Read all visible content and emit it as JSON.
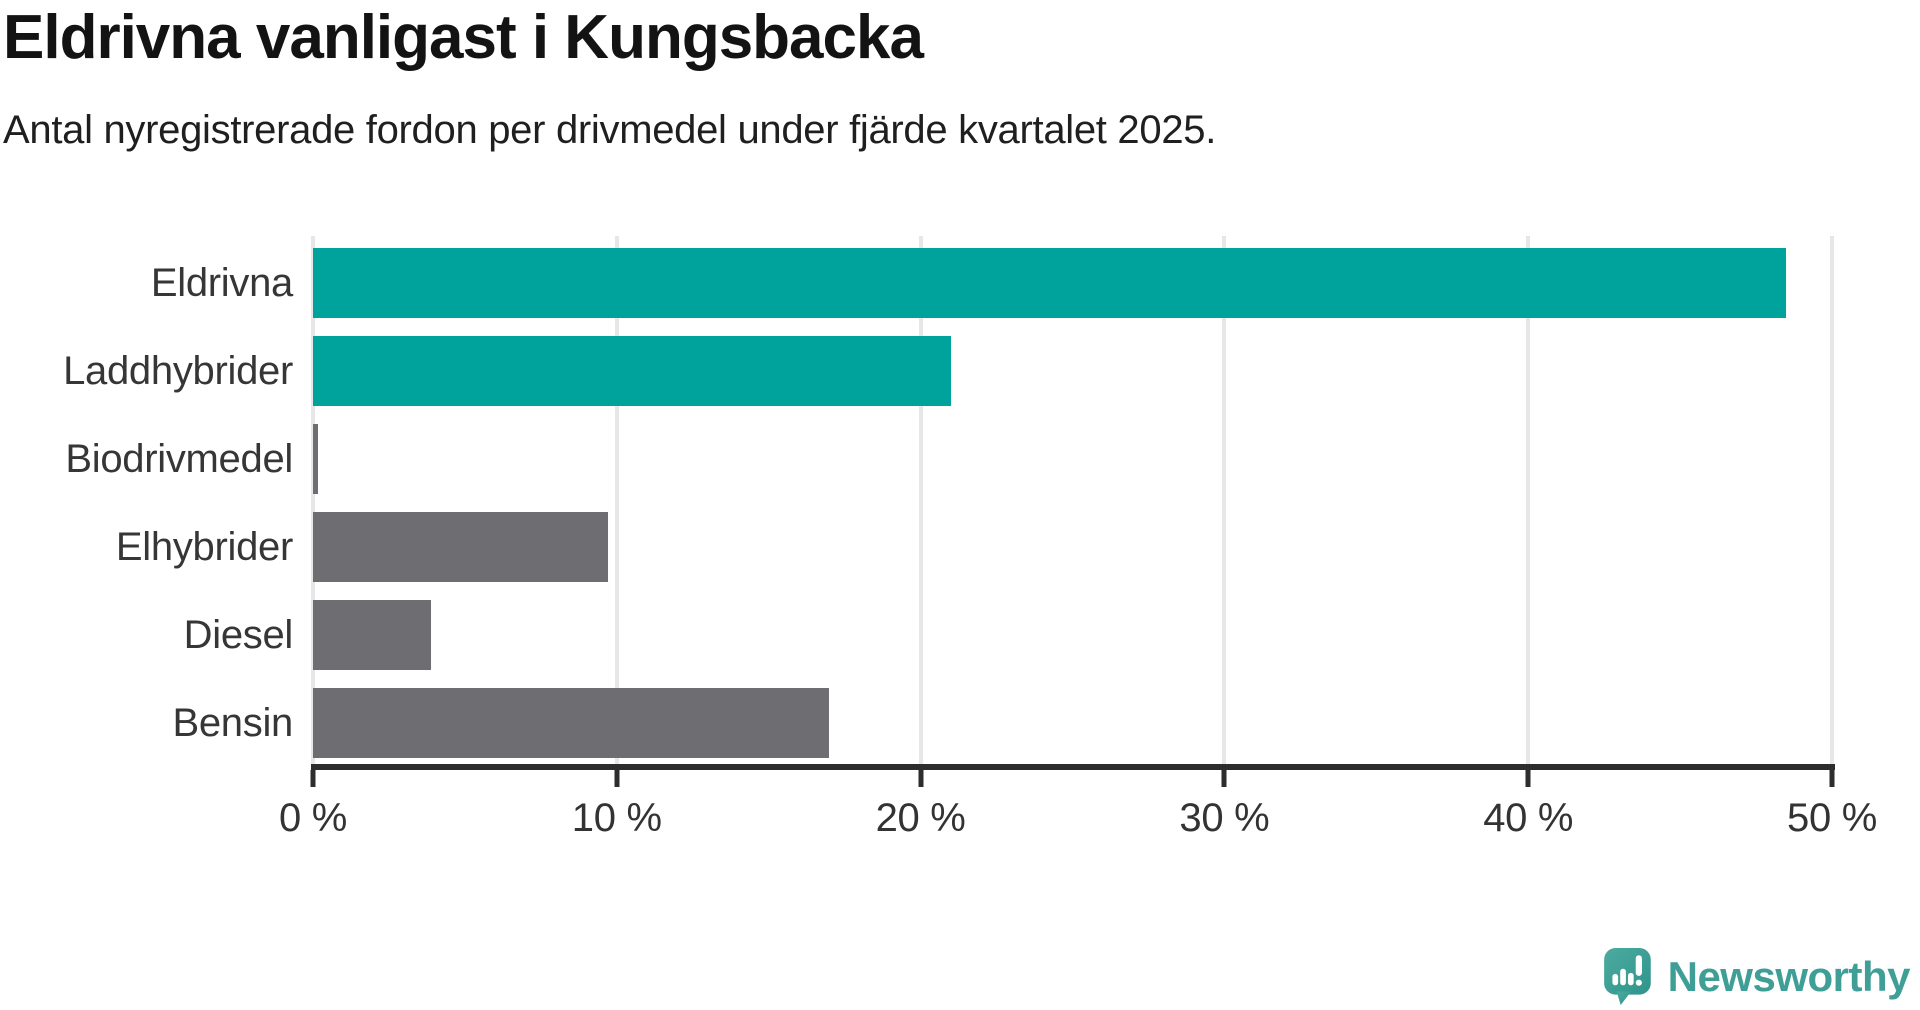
{
  "chart_data": {
    "type": "bar",
    "orientation": "horizontal",
    "title": "Eldrivna vanligast i Kungsbacka",
    "subtitle": "Antal nyregistrerade fordon per drivmedel under fjärde kvartalet 2025.",
    "categories": [
      "Eldrivna",
      "Laddhybrider",
      "Biodrivmedel",
      "Elhybrider",
      "Diesel",
      "Bensin"
    ],
    "values": [
      48.5,
      21,
      0.15,
      9.7,
      3.9,
      17
    ],
    "unit": "%",
    "bar_colors": [
      "#00a39b",
      "#00a39b",
      "#6d6d72",
      "#6d6d72",
      "#6d6d72",
      "#6d6d72"
    ],
    "highlight_color": "#00a39b",
    "default_color": "#6d6d72",
    "xlim": [
      0,
      50
    ],
    "x_tick_values": [
      0,
      10,
      20,
      30,
      40,
      50
    ],
    "x_tick_labels": [
      "0 %",
      "10 %",
      "20 %",
      "30 %",
      "40 %",
      "50 %"
    ],
    "grid": true,
    "legend": false,
    "axis_color": "#2d2d2d",
    "gridline_color": "#e7e7e7",
    "label_color": "#363636"
  },
  "branding": {
    "name": "Newsworthy",
    "logo_icon": "newsworthy-speech-bubble-chart-icon",
    "color": "#3f9e96"
  }
}
